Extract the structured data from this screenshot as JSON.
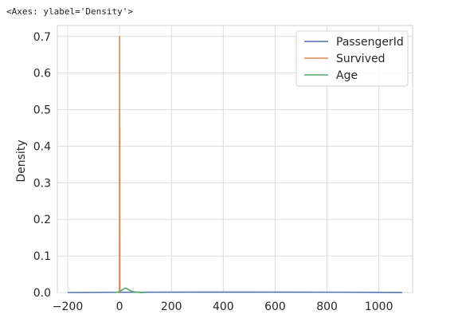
{
  "output_repr": "<Axes: ylabel='Density'>",
  "chart_data": {
    "type": "line",
    "title": "",
    "xlabel": "",
    "ylabel": "Density",
    "xlim": [
      -240,
      1130
    ],
    "ylim": [
      0,
      0.73
    ],
    "xticks": [
      -200,
      0,
      200,
      400,
      600,
      800,
      1000
    ],
    "xtick_labels": [
      "−200",
      "0",
      "200",
      "400",
      "600",
      "800",
      "1000"
    ],
    "yticks": [
      0.0,
      0.1,
      0.2,
      0.3,
      0.4,
      0.5,
      0.6,
      0.7
    ],
    "ytick_labels": [
      "0.0",
      "0.1",
      "0.2",
      "0.3",
      "0.4",
      "0.5",
      "0.6",
      "0.7"
    ],
    "grid": true,
    "legend_position": "upper right",
    "series": [
      {
        "name": "PassengerId",
        "color": "#4c72b0",
        "x": [
          -200,
          0,
          200,
          446,
          700,
          900,
          1090
        ],
        "y": [
          0.0,
          0.0008,
          0.0011,
          0.0012,
          0.0011,
          0.0008,
          0.0002
        ]
      },
      {
        "name": "Survived",
        "color": "#dd8452",
        "x": [
          -1,
          -0.5,
          -0.3,
          0.0,
          0.3,
          0.5,
          0.7,
          1.0,
          1.3,
          1.5,
          2
        ],
        "y": [
          0,
          0.0,
          0.05,
          0.7,
          0.05,
          0.03,
          0.05,
          0.45,
          0.05,
          0.0,
          0
        ]
      },
      {
        "name": "Age",
        "color": "#55a868",
        "x": [
          -20,
          0,
          10,
          20,
          28,
          35,
          45,
          60,
          80,
          100
        ],
        "y": [
          0.0,
          0.002,
          0.007,
          0.012,
          0.011,
          0.008,
          0.004,
          0.0015,
          0.0002,
          0.0
        ]
      }
    ]
  }
}
